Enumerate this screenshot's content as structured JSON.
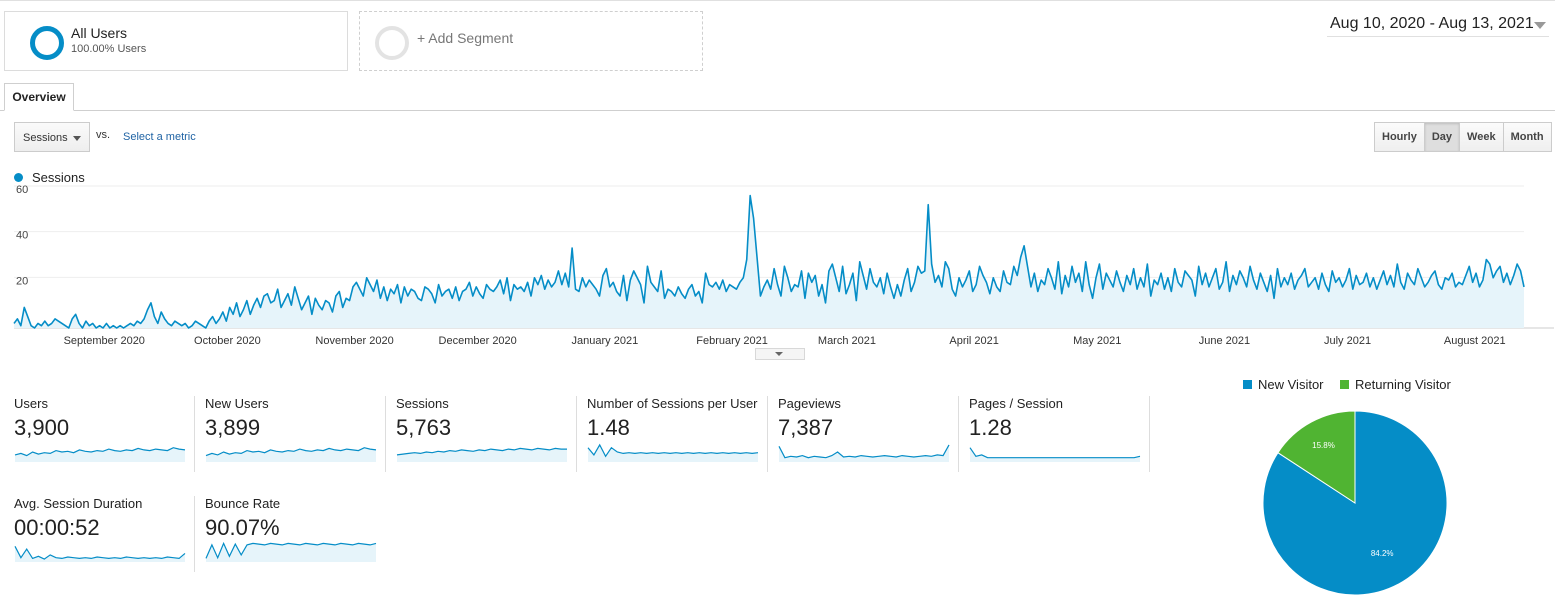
{
  "segments": {
    "all_users": {
      "title": "All Users",
      "subtitle": "100.00% Users"
    },
    "add_segment": {
      "label": "+ Add Segment"
    }
  },
  "date_range": "Aug 10, 2020 - Aug 13, 2021",
  "tabs": [
    {
      "label": "Overview"
    }
  ],
  "controls": {
    "metric_select": "Sessions",
    "vs_label": "vs.",
    "select_metric_link": "Select a metric",
    "granularity": [
      "Hourly",
      "Day",
      "Week",
      "Month"
    ],
    "active_granularity": "Day"
  },
  "colors": {
    "accent": "#058dc7",
    "area_fill": "#e6f4fa",
    "returning": "#50b432"
  },
  "chart_data": [
    {
      "type": "area",
      "legend": [
        "Sessions"
      ],
      "legend_position": "top-left",
      "grid": true,
      "x_range": [
        "2020-08-10",
        "2021-08-13"
      ],
      "ylim": [
        0,
        60
      ],
      "y_ticks": [
        20,
        40,
        60
      ],
      "x_ticks": [
        "September 2020",
        "October 2020",
        "November 2020",
        "December 2020",
        "January 2021",
        "February 2021",
        "March 2021",
        "April 2021",
        "May 2021",
        "June 2021",
        "July 2021",
        "August 2021"
      ],
      "series": [
        {
          "name": "Sessions",
          "values": [
            2,
            4,
            1,
            9,
            5,
            1,
            0,
            2,
            1,
            3,
            1,
            2,
            4,
            3,
            2,
            1,
            0,
            4,
            6,
            2,
            0,
            3,
            1,
            2,
            0,
            1,
            0,
            2,
            0,
            1,
            0,
            1,
            0,
            1,
            2,
            1,
            3,
            2,
            4,
            8,
            11,
            5,
            2,
            7,
            4,
            2,
            1,
            3,
            2,
            1,
            2,
            0,
            1,
            3,
            2,
            1,
            0,
            3,
            5,
            2,
            4,
            7,
            3,
            9,
            6,
            11,
            5,
            8,
            12,
            6,
            10,
            13,
            9,
            14,
            15,
            11,
            12,
            17,
            9,
            12,
            15,
            10,
            18,
            13,
            8,
            11,
            14,
            6,
            13,
            10,
            8,
            12,
            11,
            7,
            14,
            16,
            9,
            13,
            12,
            18,
            20,
            17,
            14,
            22,
            19,
            16,
            21,
            13,
            18,
            12,
            17,
            15,
            19,
            11,
            18,
            14,
            17,
            16,
            13,
            12,
            18,
            17,
            15,
            11,
            19,
            14,
            16,
            17,
            13,
            18,
            12,
            16,
            17,
            20,
            14,
            18,
            15,
            13,
            19,
            17,
            16,
            18,
            21,
            15,
            22,
            12,
            19,
            17,
            18,
            16,
            20,
            14,
            22,
            19,
            23,
            17,
            21,
            18,
            20,
            25,
            19,
            24,
            18,
            35,
            17,
            16,
            22,
            18,
            21,
            19,
            17,
            14,
            23,
            26,
            18,
            20,
            16,
            14,
            23,
            12,
            21,
            25,
            22,
            19,
            11,
            27,
            20,
            18,
            16,
            25,
            13,
            17,
            16,
            14,
            18,
            15,
            13,
            17,
            19,
            14,
            16,
            11,
            24,
            19,
            18,
            20,
            17,
            21,
            16,
            19,
            18,
            17,
            20,
            22,
            30,
            58,
            48,
            31,
            14,
            18,
            21,
            17,
            26,
            19,
            14,
            27,
            22,
            16,
            19,
            18,
            25,
            13,
            24,
            20,
            23,
            14,
            19,
            11,
            25,
            28,
            22,
            16,
            27,
            15,
            19,
            24,
            12,
            29,
            23,
            17,
            26,
            20,
            18,
            22,
            15,
            24,
            18,
            13,
            19,
            14,
            21,
            26,
            16,
            20,
            27,
            24,
            25,
            54,
            28,
            20,
            23,
            18,
            29,
            26,
            17,
            14,
            22,
            18,
            21,
            25,
            16,
            19,
            27,
            23,
            20,
            15,
            22,
            18,
            16,
            25,
            20,
            19,
            27,
            23,
            31,
            36,
            27,
            18,
            24,
            16,
            21,
            19,
            26,
            22,
            17,
            29,
            15,
            23,
            18,
            27,
            20,
            24,
            16,
            29,
            19,
            13,
            22,
            28,
            17,
            24,
            21,
            18,
            25,
            20,
            16,
            23,
            19,
            26,
            17,
            22,
            18,
            28,
            14,
            21,
            19,
            24,
            17,
            22,
            16,
            26,
            20,
            18,
            25,
            23,
            21,
            14,
            27,
            19,
            24,
            18,
            22,
            26,
            17,
            20,
            29,
            16,
            23,
            19,
            25,
            22,
            18,
            27,
            21,
            17,
            24,
            20,
            16,
            23,
            13,
            26,
            18,
            22,
            19,
            24,
            17,
            21,
            23,
            26,
            18,
            20,
            22,
            17,
            24,
            19,
            16,
            25,
            20,
            22,
            18,
            21,
            26,
            17,
            23,
            19,
            20,
            24,
            18,
            22,
            17,
            21,
            25,
            19,
            23,
            18,
            28,
            20,
            17,
            24,
            21,
            19,
            26,
            22,
            18,
            20,
            23,
            25,
            19,
            17,
            22,
            21,
            24,
            18,
            20,
            19,
            23,
            27,
            20,
            24,
            18,
            21,
            30,
            28,
            22,
            25,
            27,
            20,
            24,
            19,
            23,
            28,
            25,
            18
          ],
          "highlight_max": 58
        }
      ]
    },
    {
      "type": "pie",
      "legend": [
        "New Visitor",
        "Returning Visitor"
      ],
      "legend_position": "top",
      "slices": [
        {
          "name": "New Visitor",
          "value": 84.2,
          "label": "84.2%",
          "color": "#058dc7"
        },
        {
          "name": "Returning Visitor",
          "value": 15.8,
          "label": "15.8%",
          "color": "#50b432"
        }
      ]
    }
  ],
  "scorecards": [
    {
      "label": "Users",
      "value": "3,900",
      "spark": [
        10,
        12,
        9,
        14,
        11,
        13,
        12,
        16,
        14,
        15,
        13,
        17,
        15,
        14,
        16,
        15,
        18,
        16,
        15,
        17,
        16,
        19,
        17,
        16,
        18,
        17,
        16,
        20,
        18,
        17
      ]
    },
    {
      "label": "New Users",
      "value": "3,899",
      "spark": [
        9,
        12,
        10,
        14,
        11,
        13,
        12,
        16,
        14,
        15,
        13,
        17,
        15,
        14,
        16,
        15,
        18,
        16,
        15,
        17,
        16,
        19,
        17,
        16,
        18,
        17,
        16,
        20,
        18,
        17
      ]
    },
    {
      "label": "Sessions",
      "value": "5,763",
      "spark": [
        10,
        11,
        12,
        13,
        12,
        14,
        13,
        15,
        14,
        16,
        15,
        17,
        16,
        15,
        17,
        16,
        18,
        17,
        16,
        18,
        17,
        19,
        18,
        17,
        19,
        18,
        17,
        19,
        18,
        18
      ]
    },
    {
      "label": "Number of Sessions per User",
      "value": "1.48",
      "spark": [
        20,
        10,
        24,
        8,
        20,
        14,
        12,
        13,
        12,
        13,
        12,
        13,
        12,
        13,
        12,
        13,
        12,
        13,
        12,
        13,
        12,
        13,
        12,
        13,
        12,
        13,
        12,
        13,
        12,
        13
      ]
    },
    {
      "label": "Pageviews",
      "value": "7,387",
      "spark": [
        22,
        6,
        8,
        7,
        9,
        6,
        8,
        7,
        6,
        9,
        14,
        7,
        8,
        7,
        9,
        8,
        7,
        8,
        9,
        8,
        7,
        9,
        8,
        7,
        8,
        9,
        8,
        10,
        9,
        24
      ]
    },
    {
      "label": "Pages / Session",
      "value": "1.28",
      "spark": [
        20,
        8,
        10,
        6,
        6,
        6,
        6,
        6,
        6,
        6,
        6,
        6,
        6,
        6,
        6,
        6,
        6,
        6,
        6,
        6,
        6,
        6,
        6,
        6,
        6,
        6,
        6,
        6,
        6,
        8
      ]
    },
    {
      "label": "Avg. Session Duration",
      "value": "00:00:52",
      "spark": [
        22,
        6,
        18,
        5,
        8,
        4,
        10,
        6,
        5,
        7,
        6,
        5,
        6,
        5,
        7,
        6,
        5,
        6,
        5,
        7,
        6,
        5,
        6,
        5,
        6,
        5,
        7,
        6,
        5,
        12
      ]
    },
    {
      "label": "Bounce Rate",
      "value": "90.07%",
      "spark": [
        5,
        24,
        6,
        26,
        8,
        25,
        10,
        24,
        26,
        25,
        24,
        26,
        25,
        24,
        26,
        25,
        24,
        26,
        25,
        24,
        26,
        25,
        24,
        26,
        25,
        24,
        26,
        25,
        24,
        26
      ]
    }
  ]
}
